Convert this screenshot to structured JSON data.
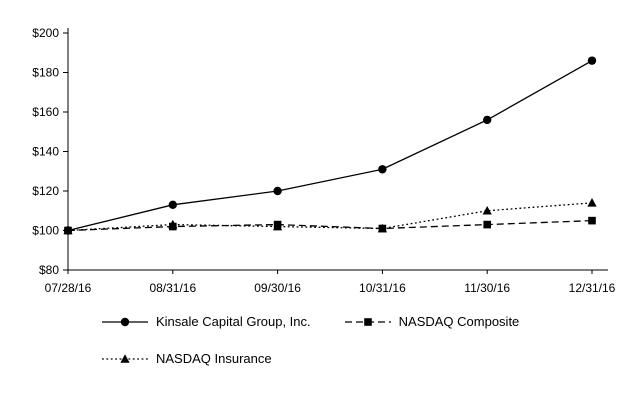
{
  "chart_data": {
    "type": "line",
    "x": [
      "07/28/16",
      "08/31/16",
      "09/30/16",
      "10/31/16",
      "11/30/16",
      "12/31/16"
    ],
    "series": [
      {
        "name": "Kinsale Capital Group, Inc.",
        "marker": "circle",
        "line": "solid",
        "values": [
          100,
          113,
          120,
          131,
          156,
          186
        ]
      },
      {
        "name": "NASDAQ Composite",
        "marker": "square",
        "line": "dashed",
        "values": [
          100,
          102,
          103,
          101,
          103,
          105
        ]
      },
      {
        "name": "NASDAQ Insurance",
        "marker": "triangle",
        "line": "dotted",
        "values": [
          100,
          103,
          102,
          101,
          110,
          114
        ]
      }
    ],
    "ylim": [
      80,
      200
    ],
    "ytick_step": 20,
    "ytick_prefix": "$",
    "grid": false,
    "legend_position": "bottom"
  },
  "colors": {
    "foreground": "#000000",
    "background": "#ffffff"
  }
}
